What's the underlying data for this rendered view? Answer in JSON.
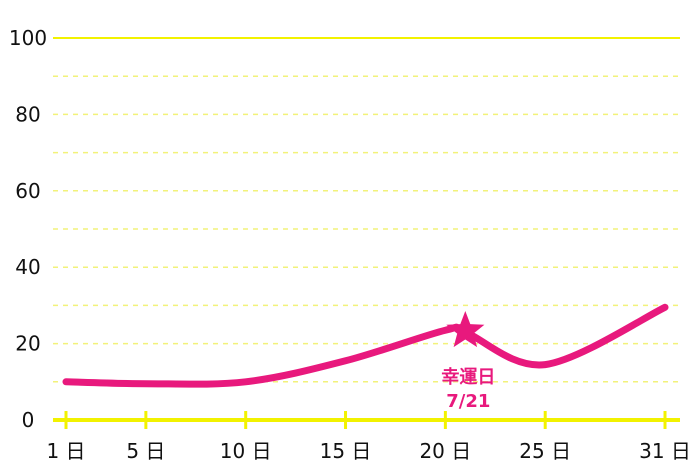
{
  "chart_data": {
    "type": "line",
    "title": "",
    "xlabel": "",
    "ylabel": "",
    "x_ticks": [
      "1 日",
      "5 日",
      "10 日",
      "15 日",
      "20 日",
      "25 日",
      "31 日"
    ],
    "x_tick_values": [
      1,
      5,
      10,
      15,
      20,
      25,
      31
    ],
    "y_ticks": [
      "0",
      "20",
      "40",
      "60",
      "80",
      "100"
    ],
    "y_tick_values": [
      0,
      20,
      40,
      60,
      80,
      100
    ],
    "xlim": [
      1,
      31
    ],
    "ylim": [
      0,
      100
    ],
    "grid": true,
    "series": [
      {
        "x": [
          1,
          5,
          10,
          15,
          20,
          21,
          25,
          31
        ],
        "values": [
          10,
          9.5,
          10,
          15.5,
          23.5,
          23,
          14.5,
          29.5
        ],
        "color": "#e8197d"
      }
    ],
    "annotation": {
      "x": 21,
      "y": 22,
      "marker": "star",
      "label_line1": "幸運日",
      "label_line2": "7/21",
      "color": "#e8197d"
    },
    "colors": {
      "axis": "#f2f200",
      "grid": "#f2f27a",
      "line": "#e8197d"
    }
  }
}
